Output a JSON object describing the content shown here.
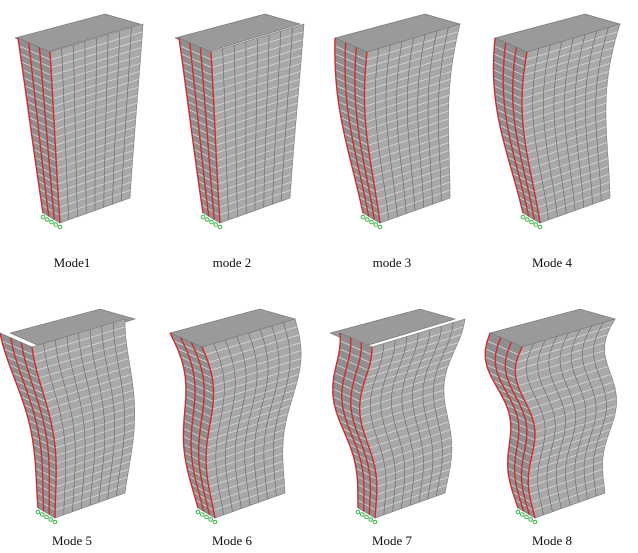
{
  "panels": [
    {
      "label": "Mode1"
    },
    {
      "label": "mode 2"
    },
    {
      "label": "mode 3"
    },
    {
      "label": "Mode 4"
    },
    {
      "label": "Mode 5"
    },
    {
      "label": "Mode 6"
    },
    {
      "label": "Mode 7"
    },
    {
      "label": "Mode 8"
    }
  ]
}
